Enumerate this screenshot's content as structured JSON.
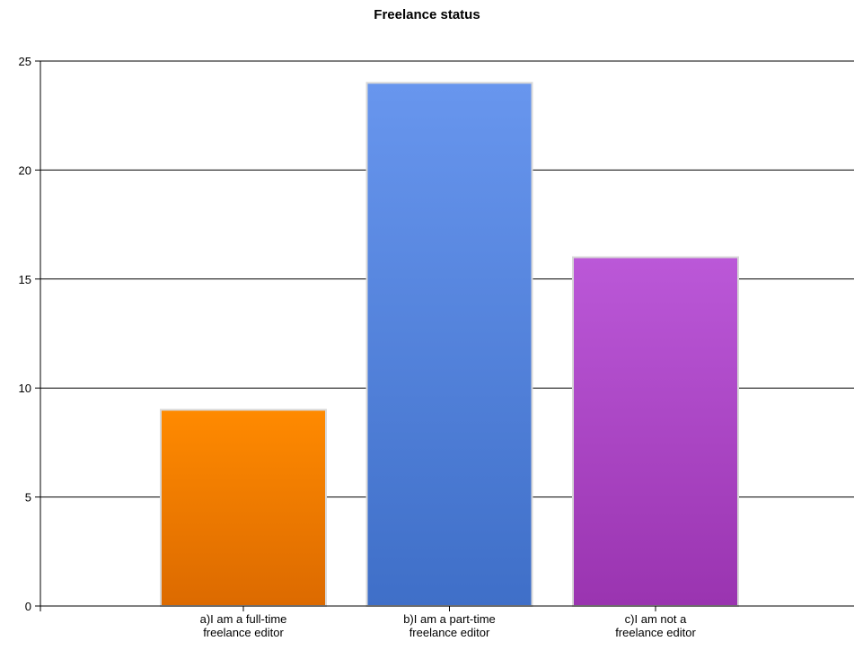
{
  "chart_data": {
    "type": "bar",
    "title": "Freelance status",
    "xlabel": "",
    "ylabel": "",
    "ylim": [
      0,
      25
    ],
    "yticks": [
      0,
      5,
      10,
      15,
      20,
      25
    ],
    "grid": true,
    "categories": [
      "a)I  am  a  full-time\nfreelance editor",
      "b)I  am  a  part-time\nfreelance editor",
      "c)I  am not a\nfreelance editor"
    ],
    "values": [
      9,
      24,
      16
    ],
    "colors": [
      {
        "top": "#ff8a00",
        "bottom": "#dc6a00"
      },
      {
        "top": "#6896ee",
        "bottom": "#3f6fc8"
      },
      {
        "top": "#bb58d8",
        "bottom": "#9a34b0"
      }
    ]
  }
}
